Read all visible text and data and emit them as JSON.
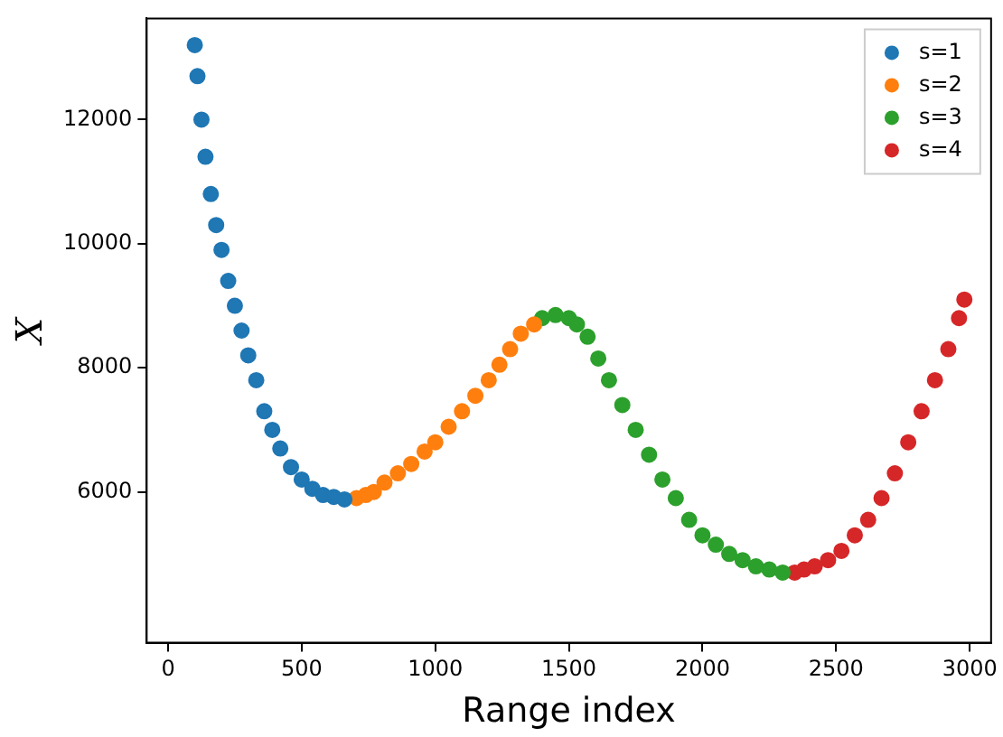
{
  "chart_data": {
    "type": "scatter",
    "xlabel": "Range index",
    "ylabel": "X",
    "xlim": [
      -80,
      3080
    ],
    "ylim": [
      3570,
      13630
    ],
    "xticks": [
      0,
      500,
      1000,
      1500,
      2000,
      2500,
      3000
    ],
    "yticks": [
      6000,
      8000,
      10000,
      12000
    ],
    "grid": false,
    "legend": "top right",
    "marker": "circle",
    "series": [
      {
        "name": "s=1",
        "color": "#1f77b4",
        "x": [
          100,
          110,
          125,
          140,
          160,
          180,
          200,
          225,
          250,
          275,
          300,
          330,
          360,
          390,
          420,
          460,
          500,
          540,
          580,
          620,
          660
        ],
        "values": [
          13200,
          12700,
          12000,
          11400,
          10800,
          10300,
          9900,
          9400,
          9000,
          8600,
          8200,
          7800,
          7300,
          7000,
          6700,
          6400,
          6200,
          6050,
          5950,
          5920,
          5880
        ]
      },
      {
        "name": "s=2",
        "color": "#ff7f0e",
        "x": [
          705,
          740,
          770,
          810,
          860,
          910,
          960,
          1000,
          1050,
          1100,
          1150,
          1200,
          1240,
          1280,
          1320,
          1370
        ],
        "values": [
          5900,
          5950,
          6000,
          6150,
          6300,
          6450,
          6650,
          6800,
          7050,
          7300,
          7550,
          7800,
          8050,
          8300,
          8550,
          8700
        ]
      },
      {
        "name": "s=3",
        "color": "#2ca02c",
        "x": [
          1400,
          1450,
          1500,
          1530,
          1570,
          1610,
          1650,
          1700,
          1750,
          1800,
          1850,
          1900,
          1950,
          2000,
          2050,
          2100,
          2150,
          2200,
          2250,
          2300
        ],
        "values": [
          8800,
          8850,
          8800,
          8700,
          8500,
          8150,
          7800,
          7400,
          7000,
          6600,
          6200,
          5900,
          5550,
          5300,
          5150,
          5000,
          4900,
          4800,
          4750,
          4700
        ]
      },
      {
        "name": "s=4",
        "color": "#d62728",
        "x": [
          2345,
          2380,
          2420,
          2470,
          2520,
          2570,
          2620,
          2670,
          2720,
          2770,
          2820,
          2870,
          2920,
          2960,
          2980
        ],
        "values": [
          4700,
          4750,
          4800,
          4900,
          5050,
          5300,
          5550,
          5900,
          6300,
          6800,
          7300,
          7800,
          8300,
          8800,
          9100
        ]
      }
    ]
  }
}
